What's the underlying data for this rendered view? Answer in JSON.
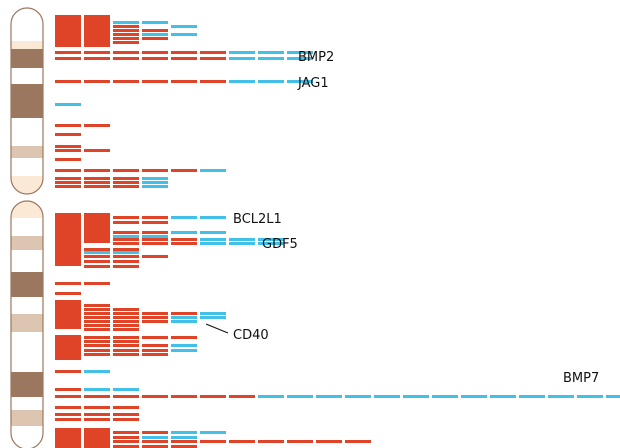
{
  "colors": {
    "loss": "#df4428",
    "gain": "#43c0e8",
    "band_dark": "#9b7760",
    "band_light": "#dcc6b2",
    "centromere": "#fbe9d6",
    "outline": "#9b7760",
    "label_text": "#111111"
  },
  "gene_labels": [
    "BMP2",
    "JAG1",
    "BCL2L1",
    "GDF5",
    "CD40",
    "BMP7"
  ]
}
